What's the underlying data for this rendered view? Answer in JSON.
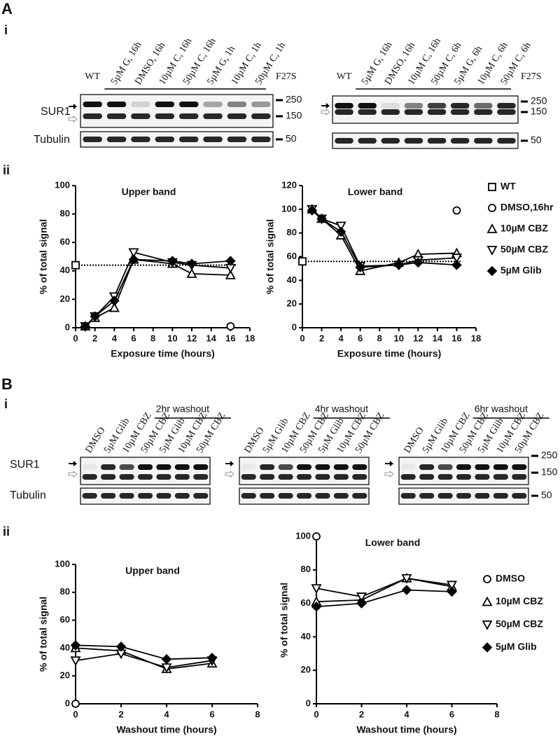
{
  "figure": {
    "panel_a": "A",
    "sub_a_i": "i",
    "sub_a_ii": "ii",
    "panel_b": "B",
    "sub_b_i": "i",
    "sub_b_ii": "ii"
  },
  "blots_a": {
    "row_labels": [
      "SUR1",
      "Tubulin"
    ],
    "blots": [
      {
        "first_lane": "WT",
        "lanes": [
          "5µM G, 16h",
          "DMSO, 16h",
          "10µM C, 16h",
          "50µM C, 16h",
          "5µM G, 1h",
          "10µM C, 1h",
          "50µM C, 1h"
        ],
        "group": "F27S",
        "mw": [
          "250",
          "150",
          "50"
        ]
      },
      {
        "first_lane": "WT",
        "lanes": [
          "5µM G, 16h",
          "DMSO, 16h",
          "10µM C, 16h",
          "50µM C, 6h",
          "5µM G, 6h",
          "10µM C, 6h",
          "50µM C, 6h"
        ],
        "group": "F27S",
        "mw": [
          "250",
          "150",
          "50"
        ]
      }
    ]
  },
  "blots_b": {
    "row_labels": [
      "SUR1",
      "Tubulin"
    ],
    "blots": [
      {
        "lanes": [
          "DMSO",
          "5µM Glib",
          "10µM CBZ",
          "50µM CBZ",
          "5µM Glib",
          "10µM CBZ",
          "50µM CBZ"
        ],
        "group": "2hr washout"
      },
      {
        "lanes": [
          "DMSO",
          "5µM Glib",
          "10µM CBZ",
          "50µM CBZ",
          "5µM Glib",
          "10µM CBZ",
          "50µM CBZ"
        ],
        "group": "4hr washout"
      },
      {
        "lanes": [
          "DMSO",
          "5µM Glib",
          "10µM CBZ",
          "50µM CBZ",
          "5µM Glib",
          "10µM CBZ",
          "50µM CBZ"
        ],
        "group": "6hr washout",
        "mw": [
          "250",
          "150",
          "50"
        ]
      }
    ]
  },
  "chart_data": [
    {
      "type": "line",
      "title": "Upper band",
      "x_label": "Exposure time (hours)",
      "y_label": "% of total signal",
      "xlim": [
        0,
        18
      ],
      "xticks": [
        0,
        2,
        4,
        6,
        8,
        10,
        12,
        14,
        16,
        18
      ],
      "ylim": [
        0,
        100
      ],
      "yticks": [
        0,
        20,
        40,
        60,
        80,
        100
      ],
      "hline": 44,
      "series": [
        {
          "marker": "square",
          "x": [
            0
          ],
          "values": [
            44
          ]
        },
        {
          "marker": "circle",
          "x": [
            16
          ],
          "values": [
            1
          ]
        },
        {
          "marker": "triangle-up",
          "x": [
            1,
            2,
            4,
            6,
            10,
            12,
            16
          ],
          "values": [
            1,
            7,
            14,
            48,
            45,
            38,
            37
          ]
        },
        {
          "marker": "triangle-down",
          "x": [
            1,
            2,
            4,
            6,
            10,
            12,
            16
          ],
          "values": [
            1,
            8,
            22,
            53,
            46,
            44,
            42
          ]
        },
        {
          "marker": "diamond",
          "x": [
            1,
            2,
            4,
            6,
            10,
            12,
            16
          ],
          "values": [
            1,
            8,
            19,
            48,
            47,
            45,
            47
          ]
        }
      ]
    },
    {
      "type": "line",
      "title": "Lower band",
      "x_label": "Exposure time (hours)",
      "y_label": "% of total signal",
      "xlim": [
        0,
        18
      ],
      "xticks": [
        0,
        2,
        4,
        6,
        8,
        10,
        12,
        14,
        16,
        18
      ],
      "ylim": [
        0,
        120
      ],
      "yticks": [
        0,
        20,
        40,
        60,
        80,
        100,
        120
      ],
      "hline": 56,
      "legend": "right",
      "series": [
        {
          "name": "WT",
          "marker": "square",
          "x": [
            0
          ],
          "values": [
            56
          ]
        },
        {
          "name": "DMSO,16hr",
          "marker": "circle",
          "x": [
            16
          ],
          "values": [
            99
          ]
        },
        {
          "name": "10µM CBZ",
          "marker": "triangle-up",
          "x": [
            1,
            2,
            4,
            6,
            10,
            12,
            16
          ],
          "values": [
            100,
            92,
            78,
            48,
            55,
            62,
            63
          ]
        },
        {
          "name": "50µM CBZ",
          "marker": "triangle-down",
          "x": [
            1,
            2,
            4,
            6,
            10,
            12,
            16
          ],
          "values": [
            100,
            92,
            86,
            52,
            53,
            57,
            59
          ]
        },
        {
          "name": "5µM Glib",
          "marker": "diamond",
          "x": [
            1,
            2,
            4,
            6,
            10,
            12,
            16
          ],
          "values": [
            99,
            92,
            81,
            51,
            53,
            55,
            53
          ]
        }
      ]
    },
    {
      "type": "line",
      "title": "Upper band",
      "x_label": "Washout  time (hours)",
      "y_label": "% of total signal",
      "xlim": [
        0,
        8
      ],
      "xticks": [
        0,
        2,
        4,
        6,
        8
      ],
      "ylim": [
        0,
        100
      ],
      "yticks": [
        0,
        20,
        40,
        60,
        80,
        100
      ],
      "series": [
        {
          "marker": "circle",
          "x": [
            0
          ],
          "values": [
            0
          ]
        },
        {
          "marker": "triangle-up",
          "x": [
            0,
            2,
            4,
            6
          ],
          "values": [
            40,
            38,
            25,
            29
          ]
        },
        {
          "marker": "triangle-down",
          "x": [
            0,
            2,
            4,
            6
          ],
          "values": [
            31,
            36,
            26,
            31
          ]
        },
        {
          "marker": "diamond",
          "x": [
            0,
            2,
            4,
            6
          ],
          "values": [
            42,
            41,
            32,
            33
          ]
        }
      ]
    },
    {
      "type": "line",
      "title": "Lower band",
      "x_label": "Washout  time (hours)",
      "y_label": "% of total signal",
      "xlim": [
        0,
        8
      ],
      "xticks": [
        0,
        2,
        4,
        6,
        8
      ],
      "ylim": [
        0,
        100
      ],
      "yticks": [
        0,
        20,
        40,
        60,
        80,
        100
      ],
      "legend": "right",
      "series": [
        {
          "name": "DMSO",
          "marker": "circle",
          "x": [
            0
          ],
          "values": [
            100
          ]
        },
        {
          "name": "10µM CBZ",
          "marker": "triangle-up",
          "x": [
            0,
            2,
            4,
            6
          ],
          "values": [
            61,
            62,
            75,
            70
          ]
        },
        {
          "name": "50µM CBZ",
          "marker": "triangle-down",
          "x": [
            0,
            2,
            4,
            6
          ],
          "values": [
            69,
            64,
            75,
            71
          ]
        },
        {
          "name": "5µM Glib",
          "marker": "diamond",
          "x": [
            0,
            2,
            4,
            6
          ],
          "values": [
            58,
            60,
            68,
            67
          ]
        }
      ]
    }
  ]
}
